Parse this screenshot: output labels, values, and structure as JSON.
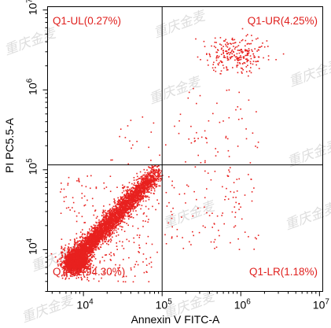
{
  "chart_data": {
    "type": "scatter",
    "title": "",
    "xlabel": "Annexin V FITC-A",
    "ylabel": "PI PC5.5-A",
    "x_scale": "log",
    "y_scale": "log",
    "xlim": [
      3500,
      11000000
    ],
    "ylim": [
      3000,
      11000000
    ],
    "x_ticks": [
      {
        "value": 10000,
        "base": "10",
        "exp": "4"
      },
      {
        "value": 100000,
        "base": "10",
        "exp": "5"
      },
      {
        "value": 1000000,
        "base": "10",
        "exp": "6"
      },
      {
        "value": 10000000,
        "base": "10",
        "exp": "7"
      }
    ],
    "y_ticks": [
      {
        "value": 10000,
        "base": "10",
        "exp": "4"
      },
      {
        "value": 100000,
        "base": "10",
        "exp": "5"
      },
      {
        "value": 1000000,
        "base": "10",
        "exp": "6"
      },
      {
        "value": 10000000,
        "base": "10",
        "exp": "7"
      }
    ],
    "gate": {
      "x": 100000,
      "y": 115000
    },
    "point_color": "#e8211f",
    "quadrants": [
      {
        "name": "Q1-UL",
        "percent": 0.27,
        "label": "Q1-UL(0.27%)"
      },
      {
        "name": "Q1-UR",
        "percent": 4.25,
        "label": "Q1-UR(4.25%)"
      },
      {
        "name": "Q1-LL",
        "percent": 94.3,
        "label": "Q1-LL(94.30%)"
      },
      {
        "name": "Q1-LR",
        "percent": 1.18,
        "label": "Q1-LR(1.18%)"
      }
    ]
  },
  "watermark": "重庆金麦"
}
